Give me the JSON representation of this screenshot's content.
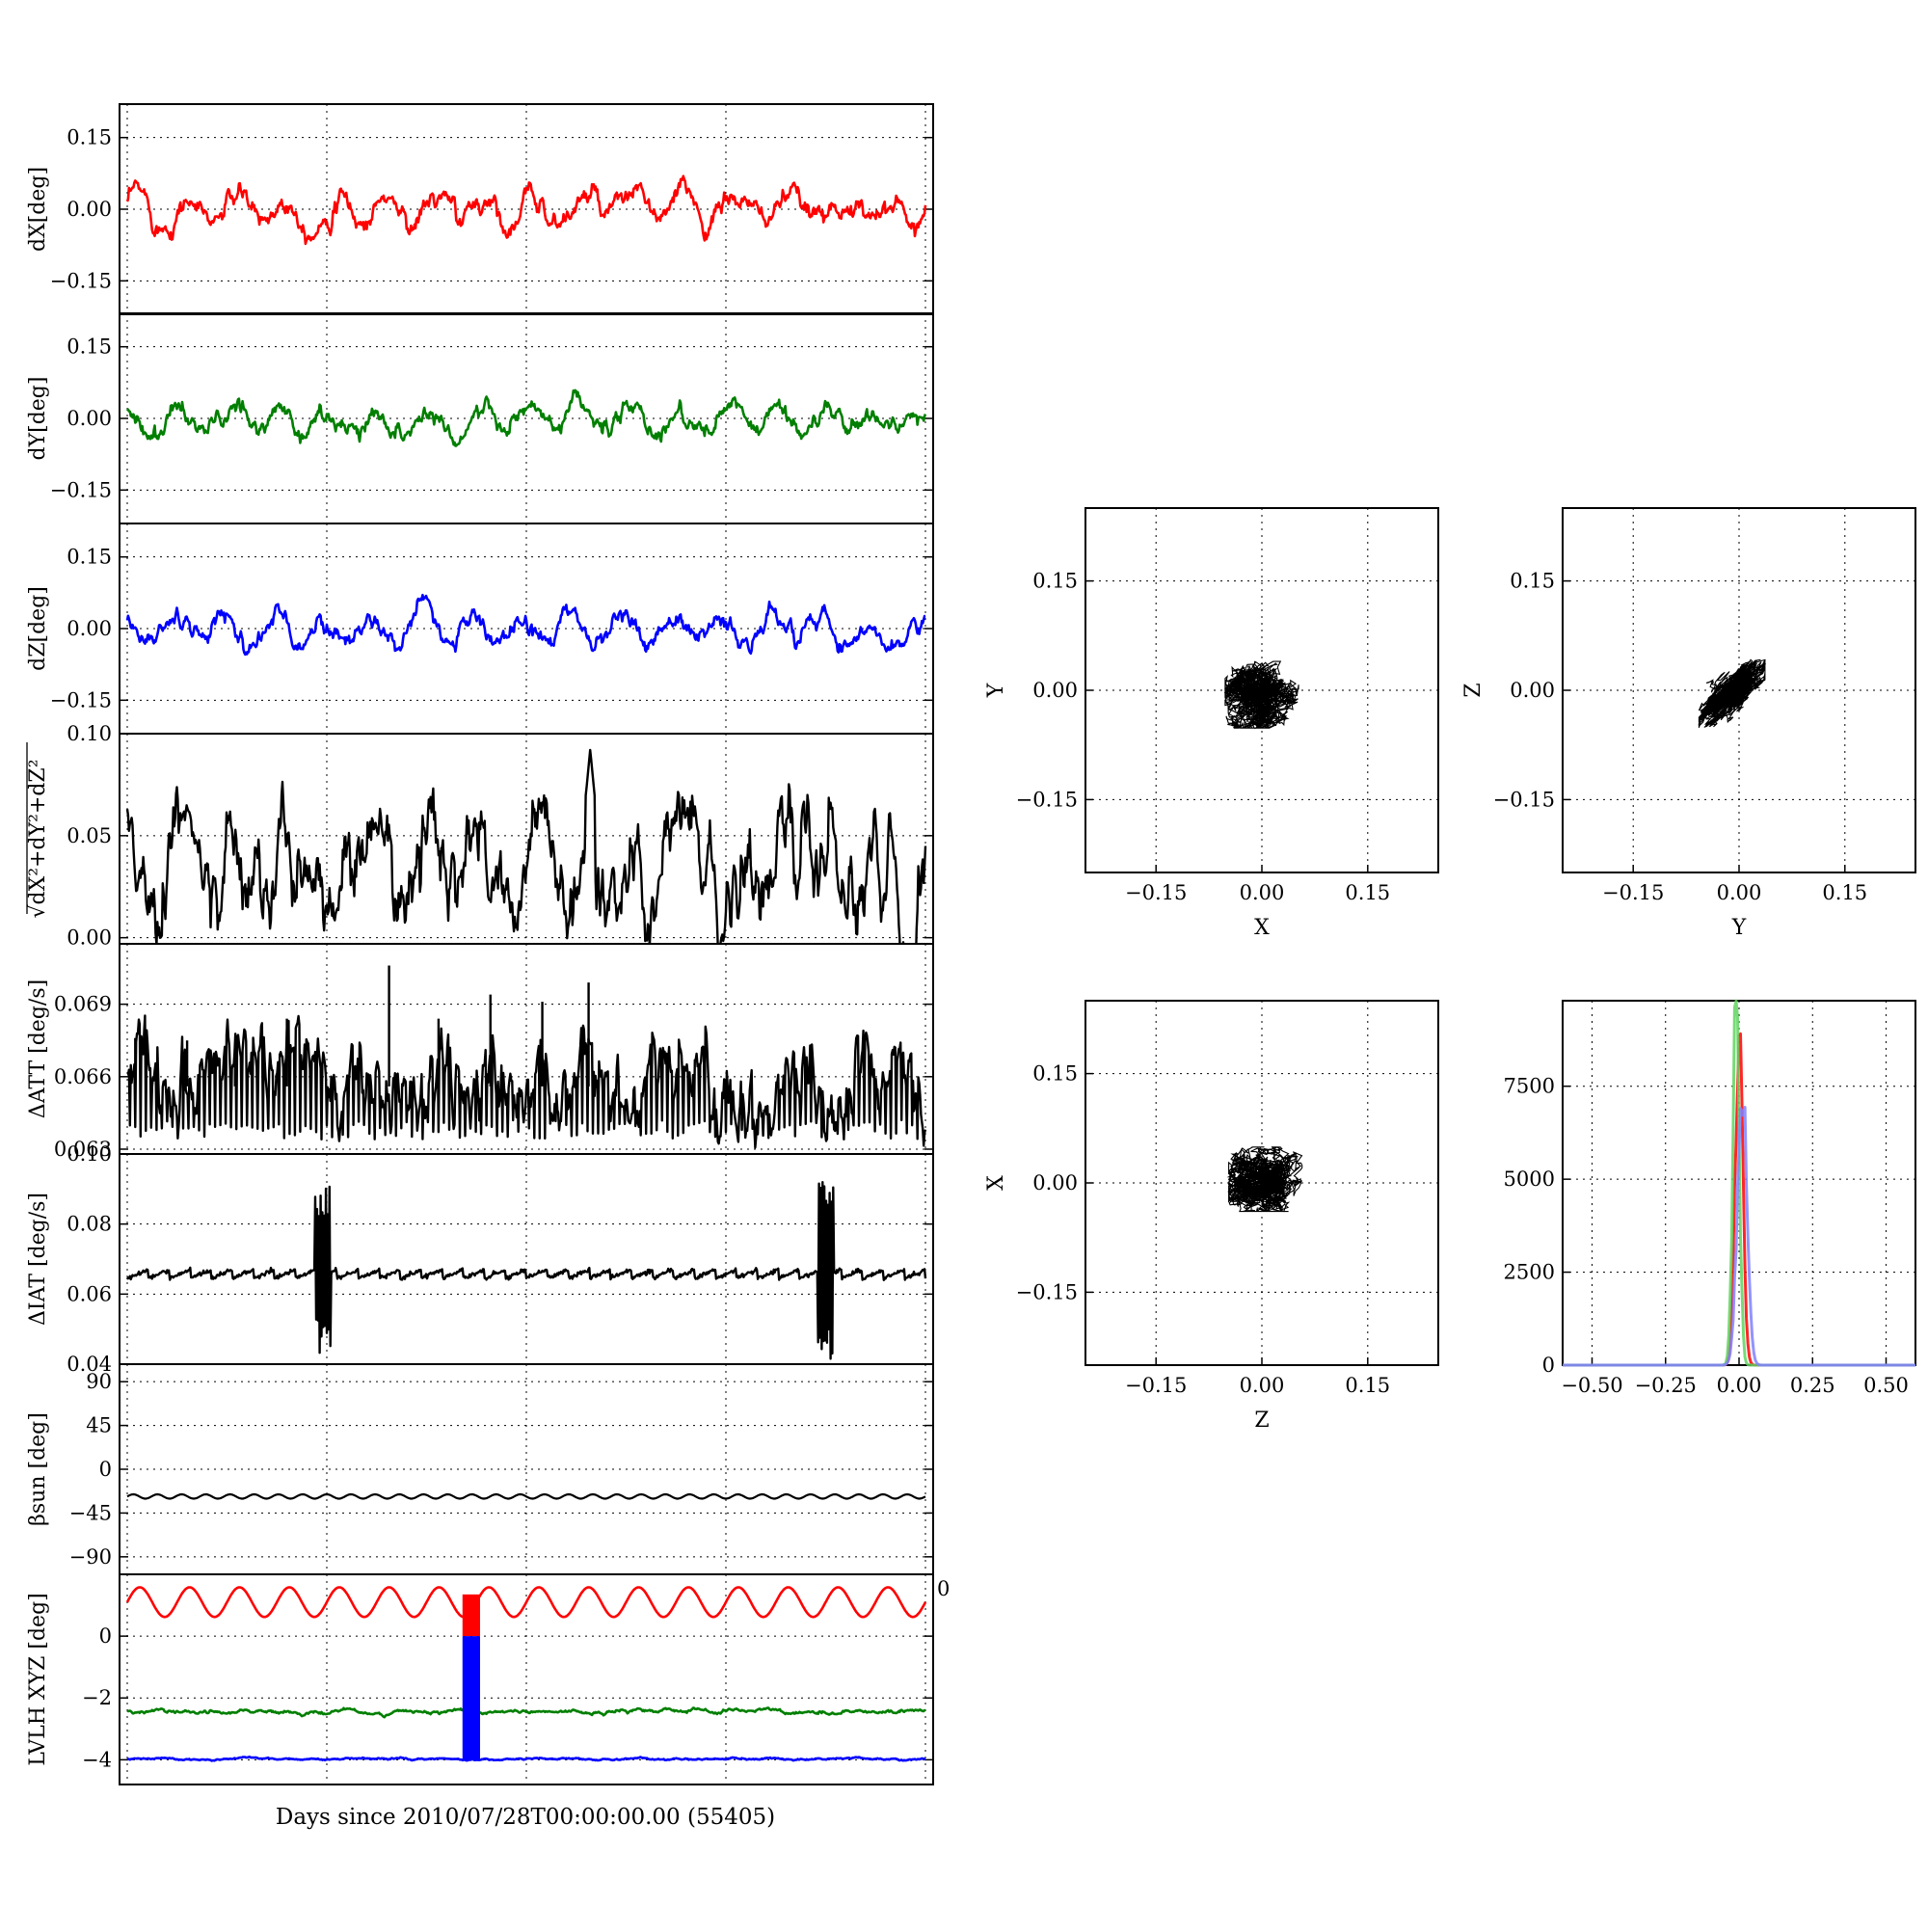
{
  "xlabel_main": "Days since 2010/07/28T00:00:00.00 (55405)",
  "colors": {
    "red": "#ff0000",
    "green": "#007f00",
    "blue": "#0000ff",
    "black": "#000000",
    "hist_green": "#5fd35f",
    "hist_blue": "#8080ff"
  },
  "chart_data": [
    {
      "type": "line",
      "name_hint": "dX panel",
      "ylabel": "dX[deg]",
      "ylim": [
        -0.22,
        0.22
      ],
      "yticks": [
        "0.15",
        "0.00",
        "−0.15"
      ],
      "ytick_values": [
        0.15,
        0.0,
        -0.15
      ],
      "xgrid_count": 4,
      "series": [
        {
          "color": "red",
          "mean": 0.0,
          "amplitude": 0.025,
          "cycles": 16,
          "noise": 0.008,
          "phase": 0.3
        }
      ]
    },
    {
      "type": "line",
      "name_hint": "dY panel",
      "ylabel": "dY[deg]",
      "ylim": [
        -0.22,
        0.22
      ],
      "yticks": [
        "0.15",
        "0.00",
        "−0.15"
      ],
      "ytick_values": [
        0.15,
        0.0,
        -0.15
      ],
      "xgrid_count": 4,
      "series": [
        {
          "color": "green",
          "mean": -0.005,
          "amplitude": 0.022,
          "cycles": 16,
          "noise": 0.007,
          "phase": 1.1
        }
      ]
    },
    {
      "type": "line",
      "name_hint": "dZ panel",
      "ylabel": "dZ[deg]",
      "ylim": [
        -0.22,
        0.22
      ],
      "yticks": [
        "0.15",
        "0.00",
        "−0.15"
      ],
      "ytick_values": [
        0.15,
        0.0,
        -0.15
      ],
      "xgrid_count": 4,
      "series": [
        {
          "color": "blue",
          "mean": 0.0,
          "amplitude": 0.025,
          "cycles": 16,
          "noise": 0.007,
          "phase": 2.0
        }
      ]
    },
    {
      "type": "line",
      "name_hint": "magnitude panel",
      "ylabel": "√dX²+dY²+dZ²",
      "ylim": [
        -0.003,
        0.1
      ],
      "yticks": [
        "0.10",
        "0.05",
        "0.00"
      ],
      "ytick_values": [
        0.1,
        0.05,
        0.0
      ],
      "xgrid_count": 4,
      "series": [
        {
          "color": "black",
          "mean": 0.032,
          "amplitude": 0.017,
          "cycles": 16,
          "noise": 0.007,
          "phase": 0.7,
          "peak": {
            "at": 0.58,
            "value": 0.092
          }
        }
      ]
    },
    {
      "type": "line",
      "name_hint": "dATT panel",
      "ylabel": "ΔATT [deg/s]",
      "ylim": [
        0.0628,
        0.0715
      ],
      "yticks": [
        "0.069",
        "0.066",
        "0.063"
      ],
      "ytick_values": [
        0.069,
        0.066,
        0.063
      ],
      "xgrid_count": 4,
      "series": [
        {
          "color": "black",
          "mean": 0.0656,
          "amplitude": 0.0006,
          "cycles": 90,
          "noise": 0.0004,
          "dips": 0.0634,
          "spikes": [
            {
              "at": 0.01,
              "value": 0.0676
            },
            {
              "at": 0.075,
              "value": 0.0675
            },
            {
              "at": 0.135,
              "value": 0.0667
            },
            {
              "at": 0.2,
              "value": 0.0684
            },
            {
              "at": 0.328,
              "value": 0.0706
            },
            {
              "at": 0.39,
              "value": 0.0684
            },
            {
              "at": 0.455,
              "value": 0.0694
            },
            {
              "at": 0.52,
              "value": 0.0691
            },
            {
              "at": 0.578,
              "value": 0.0699
            }
          ]
        }
      ]
    },
    {
      "type": "line",
      "name_hint": "dIAT panel",
      "ylabel": "ΔIAT [deg/s]",
      "ylim": [
        0.04,
        0.1
      ],
      "yticks": [
        "0.10",
        "0.08",
        "0.06",
        "0.04"
      ],
      "ytick_values": [
        0.1,
        0.08,
        0.06,
        0.04
      ],
      "xgrid_count": 4,
      "series": [
        {
          "color": "black",
          "sawtooth": {
            "low": 0.0645,
            "high": 0.067,
            "teeth": 38
          },
          "bursts": [
            {
              "from": 0.235,
              "to": 0.255,
              "low": 0.043,
              "high": 0.092
            },
            {
              "from": 0.865,
              "to": 0.885,
              "low": 0.041,
              "high": 0.092
            }
          ]
        }
      ]
    },
    {
      "type": "line",
      "name_hint": "beta sun panel",
      "ylabel": "βsun [deg]",
      "ylim": [
        -108,
        108
      ],
      "yticks": [
        "90",
        "45",
        "0",
        "−45",
        "−90"
      ],
      "ytick_values": [
        90,
        45,
        0,
        -45,
        -90
      ],
      "xgrid_count": 4,
      "series": [
        {
          "color": "black",
          "mean": -28,
          "amplitude": 2.2,
          "cycles": 33
        }
      ]
    },
    {
      "type": "line",
      "name_hint": "LVLH panel",
      "ylabel": "LVLH XYZ [deg]",
      "ylim": [
        -4.8,
        2.0
      ],
      "yticks": [
        "0",
        "−2",
        "−4"
      ],
      "ytick_values": [
        0,
        -2,
        -4
      ],
      "xgrid_count": 4,
      "right_clip_label": "0",
      "series": [
        {
          "color": "red",
          "mean": 1.1,
          "amplitude": 0.48,
          "cycles": 16
        },
        {
          "color": "green",
          "mean": -2.45,
          "amplitude": 0.04,
          "cycles": 8,
          "noise": 0.02
        },
        {
          "color": "blue",
          "mean": -3.98,
          "amplitude": 0.02,
          "cycles": 8,
          "noise": 0.01
        }
      ],
      "bars": [
        {
          "at": 0.42,
          "width": 0.022,
          "red": [
            0.0,
            1.35
          ],
          "blue": [
            -4.0,
            0.0
          ]
        }
      ]
    },
    {
      "type": "scatter",
      "name_hint": "X vs Y",
      "xlabel": "X",
      "ylabel": "Y",
      "xlim": [
        -0.25,
        0.25
      ],
      "ylim": [
        -0.25,
        0.25
      ],
      "ticks": [
        "−0.15",
        "0.00",
        "0.15"
      ],
      "tick_values": [
        -0.15,
        0.0,
        0.15
      ],
      "cloud": {
        "cx": 0.0,
        "cy": -0.005,
        "sx": 0.02,
        "sy": 0.018,
        "rho": 0.25
      }
    },
    {
      "type": "scatter",
      "name_hint": "Y vs Z",
      "xlabel": "Y",
      "ylabel": "Z",
      "xlim": [
        -0.25,
        0.25
      ],
      "ylim": [
        -0.25,
        0.25
      ],
      "ticks": [
        "−0.15",
        "0.00",
        "0.15"
      ],
      "tick_values": [
        -0.15,
        0.0,
        0.15
      ],
      "cloud": {
        "cx": -0.01,
        "cy": -0.005,
        "sx": 0.018,
        "sy": 0.018,
        "rho": 0.85
      }
    },
    {
      "type": "scatter",
      "name_hint": "Z vs X",
      "xlabel": "Z",
      "ylabel": "X",
      "xlim": [
        -0.25,
        0.25
      ],
      "ylim": [
        -0.25,
        0.25
      ],
      "ticks": [
        "−0.15",
        "0.00",
        "0.15"
      ],
      "tick_values": [
        -0.15,
        0.0,
        0.15
      ],
      "cloud": {
        "cx": 0.005,
        "cy": 0.005,
        "sx": 0.02,
        "sy": 0.017,
        "rho": 0.1
      }
    },
    {
      "type": "histogram",
      "name_hint": "distribution",
      "xlim": [
        -0.6,
        0.6
      ],
      "ylim": [
        0,
        9800
      ],
      "xticks": [
        "−0.50",
        "−0.25",
        "0.00",
        "0.25",
        "0.50"
      ],
      "xtick_values": [
        -0.5,
        -0.25,
        0.0,
        0.25,
        0.5
      ],
      "yticks": [
        "7500",
        "5000",
        "2500",
        "0"
      ],
      "ytick_values": [
        7500,
        5000,
        2500,
        0
      ],
      "series": [
        {
          "color": "red",
          "center": 0.0,
          "sigma": 0.013,
          "peak": 8800
        },
        {
          "color": "hist_green",
          "center": -0.01,
          "sigma": 0.011,
          "peak": 9600
        },
        {
          "color": "hist_blue",
          "center": 0.01,
          "sigma": 0.016,
          "peak": 7600
        }
      ]
    }
  ]
}
